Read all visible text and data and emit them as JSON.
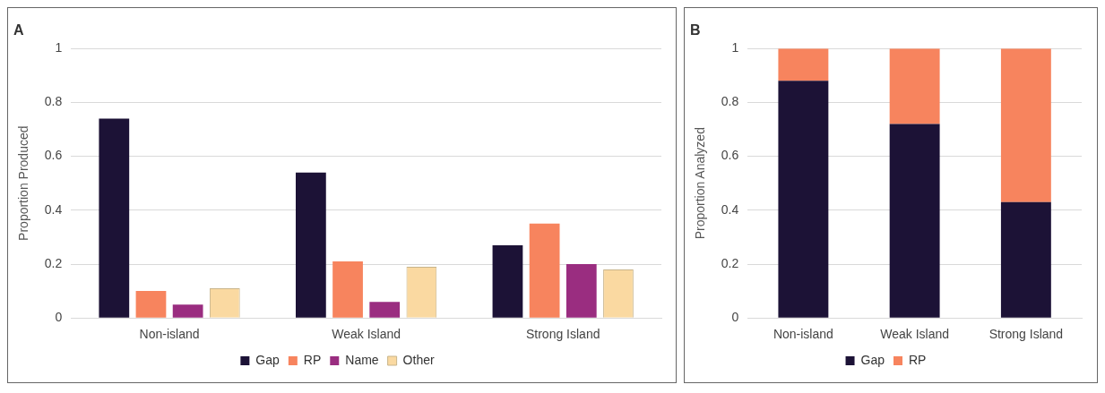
{
  "chart_data": [
    {
      "type": "bar",
      "title": "A",
      "ylabel": "Proportion Produced",
      "categories": [
        "Non-island",
        "Weak Island",
        "Strong Island"
      ],
      "series": [
        {
          "name": "Gap",
          "color": "#1c1236",
          "values": [
            0.74,
            0.54,
            0.27
          ]
        },
        {
          "name": "RP",
          "color": "#f7845e",
          "values": [
            0.1,
            0.21,
            0.35
          ]
        },
        {
          "name": "Name",
          "color": "#9a2d80",
          "values": [
            0.05,
            0.06,
            0.2
          ]
        },
        {
          "name": "Other",
          "color": "#fad9a1",
          "values": [
            0.11,
            0.19,
            0.18
          ]
        }
      ],
      "ylim": [
        0,
        1
      ],
      "yticks": [
        0,
        0.2,
        0.4,
        0.6,
        0.8,
        1
      ],
      "grid": "y",
      "legend": "bottom"
    },
    {
      "type": "bar",
      "title": "B",
      "ylabel": "Proportion Analyzed",
      "categories": [
        "Non-island",
        "Weak Island",
        "Strong Island"
      ],
      "stacked": true,
      "series": [
        {
          "name": "Gap",
          "color": "#1c1236",
          "values": [
            0.88,
            0.72,
            0.43
          ]
        },
        {
          "name": "RP",
          "color": "#f7845e",
          "values": [
            0.12,
            0.28,
            0.57
          ]
        }
      ],
      "ylim": [
        0,
        1
      ],
      "yticks": [
        0,
        0.2,
        0.4,
        0.6,
        0.8,
        1
      ],
      "grid": "y",
      "legend": "bottom"
    }
  ]
}
